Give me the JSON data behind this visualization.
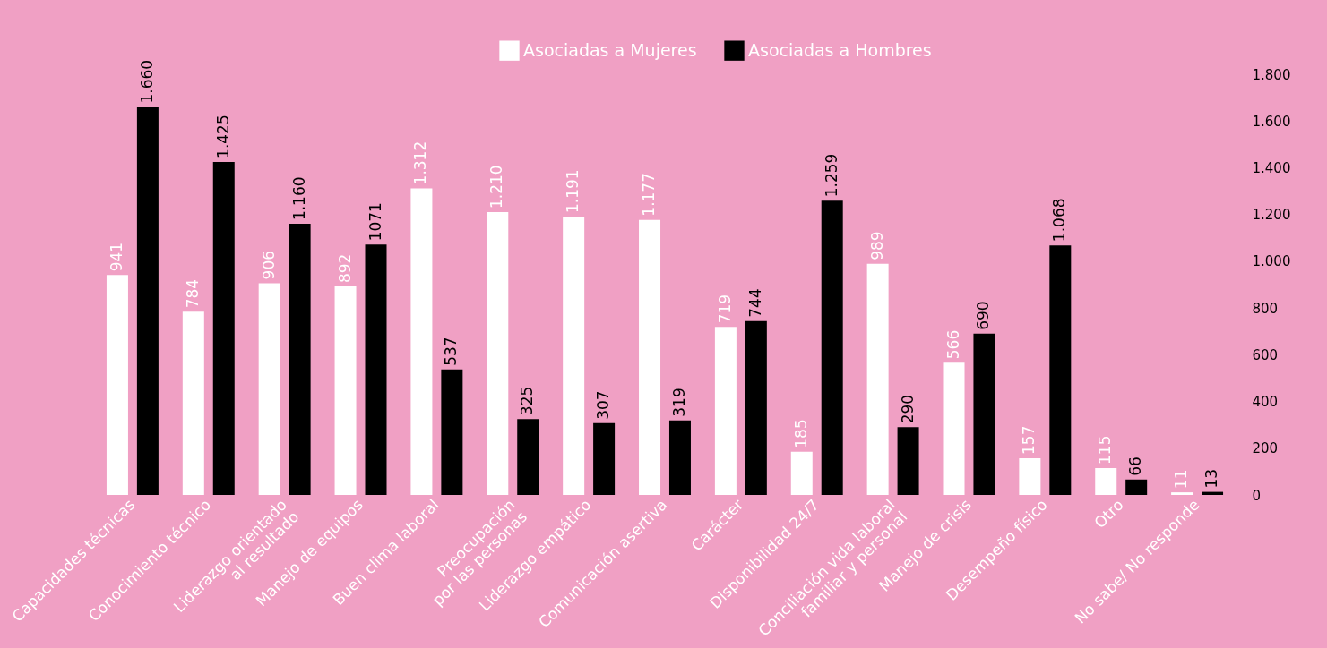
{
  "chart_data": {
    "type": "bar",
    "categories": [
      "Capacidades técnicas",
      "Conocimiento técnico",
      "Liderazgo orientado al resultado",
      "Manejo de equipos",
      "Buen clima laboral",
      "Preocupación por las personas",
      "Liderazgo empático",
      "Comunicación asertiva",
      "Carácter",
      "Disponibilidad 24/7",
      "Conciliación vida laboral familiar y personal",
      "Manejo de crisis",
      "Desempeño físico",
      "Otro",
      "No sabe/ No responde"
    ],
    "series": [
      {
        "name": "Asociadas a Mujeres",
        "color": "#ffffff",
        "values": [
          941,
          784,
          906,
          892,
          1312,
          1210,
          1191,
          1177,
          719,
          185,
          989,
          566,
          157,
          115,
          11
        ],
        "value_labels": [
          "941",
          "784",
          "906",
          "892",
          "1.312",
          "1.210",
          "1.191",
          "1.177",
          "719",
          "185",
          "989",
          "566",
          "157",
          "115",
          "11"
        ]
      },
      {
        "name": "Asociadas a Hombres",
        "color": "#000000",
        "values": [
          1660,
          1425,
          1160,
          1071,
          537,
          325,
          307,
          319,
          744,
          1259,
          290,
          690,
          1068,
          66,
          13
        ],
        "value_labels": [
          "1.660",
          "1.425",
          "1.160",
          "1071",
          "537",
          "325",
          "307",
          "319",
          "744",
          "1.259",
          "290",
          "690",
          "1.068",
          "66",
          "13"
        ]
      }
    ],
    "ylim": [
      0,
      1800
    ],
    "yticks": [
      {
        "value": 0,
        "label": "0"
      },
      {
        "value": 200,
        "label": "200"
      },
      {
        "value": 400,
        "label": "400"
      },
      {
        "value": 600,
        "label": "600"
      },
      {
        "value": 800,
        "label": "800"
      },
      {
        "value": 1000,
        "label": "1.000"
      },
      {
        "value": 1200,
        "label": "1.200"
      },
      {
        "value": 1400,
        "label": "1.400"
      },
      {
        "value": 1600,
        "label": "1.600"
      },
      {
        "value": 1800,
        "label": "1.800"
      }
    ],
    "grid": false,
    "legend": "top"
  }
}
